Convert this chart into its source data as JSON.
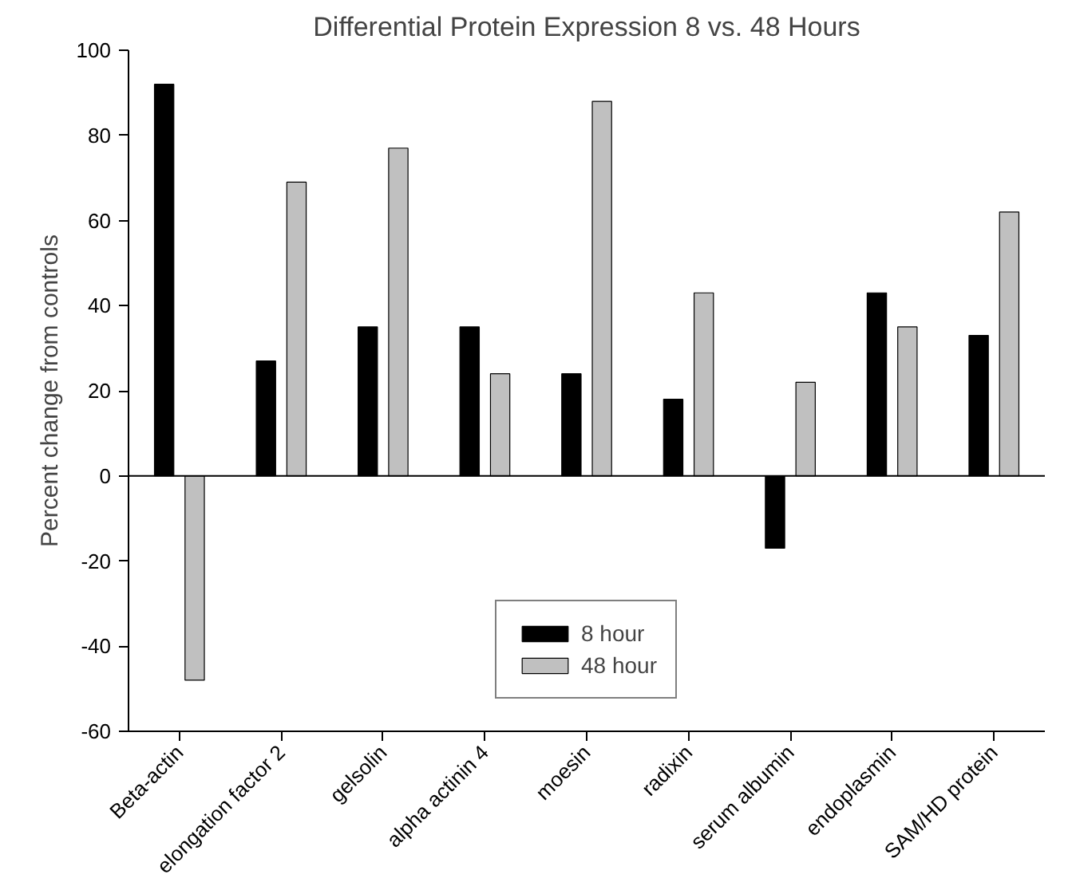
{
  "chart_data": {
    "type": "bar",
    "title": "Differential Protein Expression 8 vs. 48 Hours",
    "ylabel": "Percent change from controls",
    "categories": [
      "Beta-actin",
      "elongation factor 2",
      "gelsolin",
      "alpha actinin 4",
      "moesin",
      "radixin",
      "serum albumin",
      "endoplasmin",
      "SAM/HD protein"
    ],
    "series": [
      {
        "name": "8 hour",
        "color": "#000000",
        "values": [
          92,
          27,
          35,
          35,
          24,
          18,
          -17,
          43,
          33
        ]
      },
      {
        "name": "48 hour",
        "color": "#c0c0c0",
        "values": [
          -48,
          69,
          77,
          24,
          88,
          43,
          22,
          35,
          62
        ]
      }
    ],
    "ylim": [
      -60,
      100
    ],
    "yticks": [
      -60,
      -40,
      -20,
      0,
      20,
      40,
      60,
      80,
      100
    ],
    "grid": false,
    "ref_lines": [
      {
        "axis": "y",
        "value": 0,
        "color": "#000000"
      }
    ],
    "legend": "bottom"
  }
}
